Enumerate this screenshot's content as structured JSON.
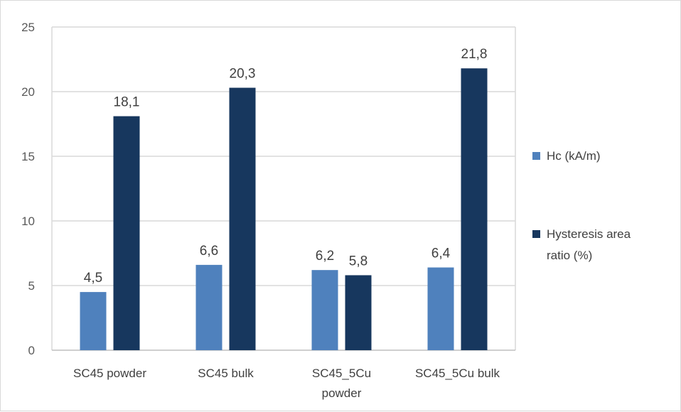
{
  "chart_data": {
    "type": "bar",
    "title": "",
    "xlabel": "",
    "ylabel": "",
    "categories": [
      [
        "SC45 powder"
      ],
      [
        "SC45 bulk"
      ],
      [
        "SC45_5Cu",
        "powder"
      ],
      [
        "SC45_5Cu bulk"
      ]
    ],
    "series": [
      {
        "name": "Hc (kA/m)",
        "legend_lines": [
          "Hc (kA/m)"
        ],
        "color": "#4f81bd",
        "values": [
          4.5,
          6.6,
          6.2,
          6.4
        ],
        "labels": [
          "4,5",
          "6,6",
          "6,2",
          "6,4"
        ]
      },
      {
        "name": "Hysteresis area ratio (%)",
        "legend_lines": [
          "Hysteresis area",
          "ratio (%)"
        ],
        "color": "#17375e",
        "values": [
          18.1,
          20.3,
          5.8,
          21.8
        ],
        "labels": [
          "18,1",
          "20,3",
          "5,8",
          "21,8"
        ]
      }
    ],
    "ylim": [
      0,
      25
    ],
    "yticks": [
      0,
      5,
      10,
      15,
      20,
      25
    ],
    "grid": true,
    "legend_position": "right"
  }
}
